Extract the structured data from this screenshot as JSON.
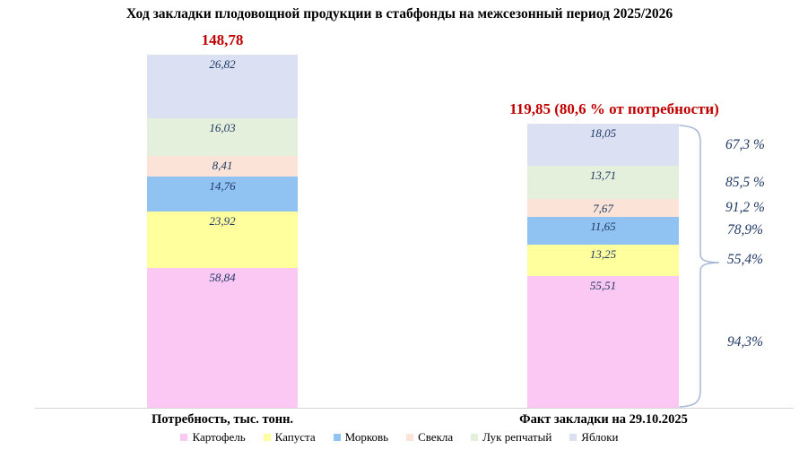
{
  "chart_data": {
    "type": "bar",
    "stacked": true,
    "title": "Ход закладки плодовощной продукции в стабфонды на межсезонный период 2025/2026",
    "categories": [
      "Потребность, тыс. тонн.",
      "Факт закладки на 29.10.2025"
    ],
    "totals": [
      {
        "label": "148,78",
        "value": 148.78
      },
      {
        "label": "119,85 (80,6 % от потребности)",
        "value": 119.85,
        "percent_of_need": "80,6 %"
      }
    ],
    "series": [
      {
        "name": "Картофель",
        "color": "#FAC8F2",
        "values": [
          58.84,
          55.51
        ],
        "labels": [
          "58,84",
          "55,51"
        ],
        "fact_percent": "94,3%"
      },
      {
        "name": "Капуста",
        "color": "#FFFF9D",
        "values": [
          23.92,
          13.25
        ],
        "labels": [
          "23,92",
          "13,25"
        ],
        "fact_percent": "55,4%"
      },
      {
        "name": "Морковь",
        "color": "#90C3F2",
        "values": [
          14.76,
          11.65
        ],
        "labels": [
          "14,76",
          "11,65"
        ],
        "fact_percent": "78,9%"
      },
      {
        "name": "Свекла",
        "color": "#FBE4D7",
        "values": [
          8.41,
          7.67
        ],
        "labels": [
          "8,41",
          "7,67"
        ],
        "fact_percent": "91,2 %"
      },
      {
        "name": "Лук репчатый",
        "color": "#E4F0DC",
        "values": [
          16.03,
          13.71
        ],
        "labels": [
          "16,03",
          "13,71"
        ],
        "fact_percent": "85,5 %"
      },
      {
        "name": "Яблоки",
        "color": "#DBE1F2",
        "values": [
          26.82,
          18.05
        ],
        "labels": [
          "26,82",
          "18,05"
        ],
        "fact_percent": "67,3 %"
      }
    ],
    "legend_position": "bottom",
    "y_axis_visible": false,
    "ylim": [
      0,
      150
    ],
    "styles": {
      "total_label_color": "#C00000",
      "value_label_color": "#1F3864",
      "percent_label_color": "#1F3864",
      "brace_color": "#A9B8D6",
      "axis_line_color": "#D5D5D5"
    }
  }
}
